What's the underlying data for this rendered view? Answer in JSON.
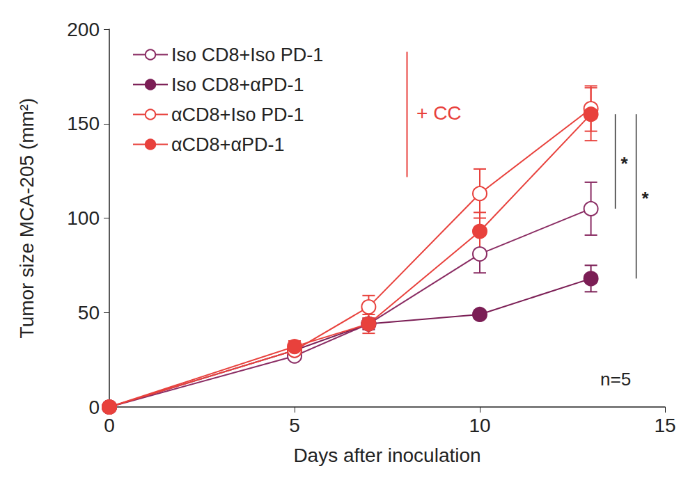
{
  "chart_data": {
    "type": "line",
    "x_label": "Days after inoculation",
    "y_label": "Tumor size MCA-205 (mm²)",
    "x": [
      0,
      5,
      7,
      10,
      13
    ],
    "series": [
      {
        "name": "Iso CD8+Iso PD-1",
        "color": "#8a2c63",
        "marker": "circle-open",
        "values": [
          0,
          27,
          44,
          81,
          105
        ],
        "errors": [
          0,
          1,
          2,
          10,
          14
        ]
      },
      {
        "name": "Iso CD8+αPD-1",
        "color": "#7b1e55",
        "marker": "circle",
        "values": [
          0,
          30,
          44,
          49,
          68
        ],
        "errors": [
          0,
          2,
          3,
          2,
          7
        ]
      },
      {
        "name": "αCD8+Iso PD-1",
        "color": "#e8413c",
        "marker": "circle-open",
        "values": [
          0,
          30,
          53,
          113,
          158
        ],
        "errors": [
          0,
          2,
          6,
          13,
          12
        ]
      },
      {
        "name": "αCD8+αPD-1",
        "color": "#e8413c",
        "marker": "circle",
        "values": [
          0,
          32,
          44,
          93,
          155
        ],
        "errors": [
          0,
          3,
          5,
          10,
          14
        ]
      }
    ],
    "xlim": [
      0,
      15
    ],
    "xticks": [
      0,
      5,
      10,
      15
    ],
    "ylim": [
      0,
      200
    ],
    "yticks": [
      0,
      50,
      100,
      150,
      200
    ],
    "grid": false,
    "legend": "upper left",
    "annotations": [
      {
        "text": "+ CC",
        "color": "#e8413c"
      },
      {
        "text": "n=5"
      }
    ],
    "significance": [
      {
        "series": [
          "Iso CD8+Iso PD-1",
          "αCD8+αPD-1"
        ],
        "label": "*"
      },
      {
        "series": [
          "Iso CD8+αPD-1",
          "αCD8+αPD-1"
        ],
        "label": "*"
      }
    ]
  }
}
